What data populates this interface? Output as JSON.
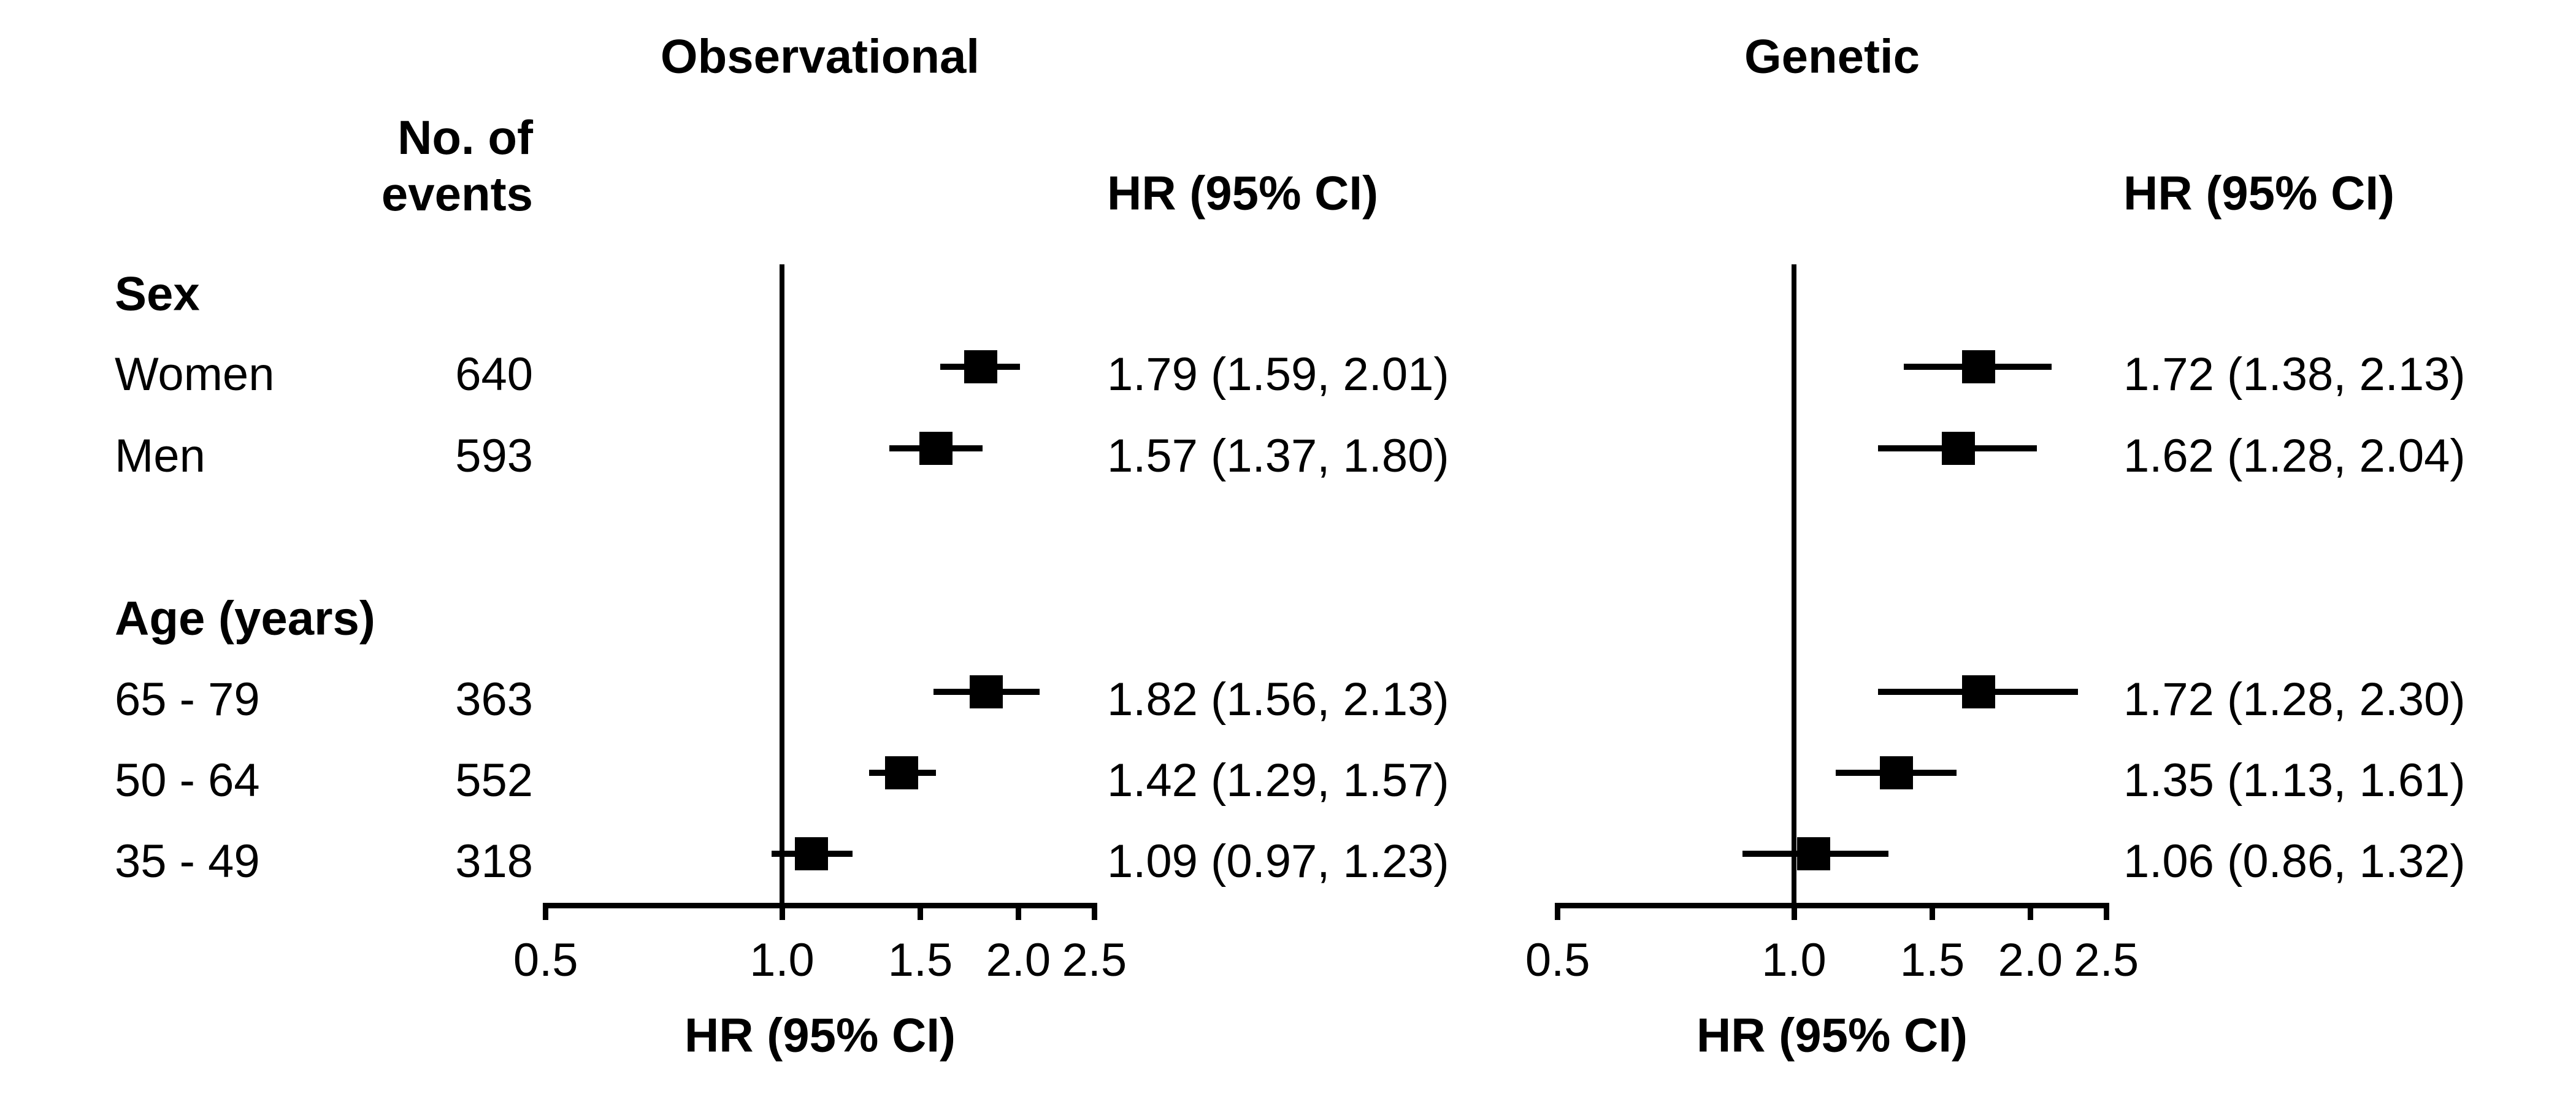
{
  "header": {
    "panel_titles": [
      "Observational",
      "Genetic"
    ],
    "events_line1": "No. of",
    "events_line2": "events",
    "hr_column_header": "HR (95% CI)",
    "axis_label": "HR (95% CI)"
  },
  "chart_data": {
    "type": "forest",
    "xscale": "log",
    "xticks": [
      "0.5",
      "1.0",
      "1.5",
      "2.0",
      "2.5"
    ],
    "xlim": [
      0.5,
      2.5
    ],
    "reference_value": 1.0,
    "xlabel": "HR (95% CI)",
    "grid": "off",
    "panels": [
      "Observational",
      "Genetic"
    ],
    "columns": {
      "left_label": "group",
      "events": "No. of events",
      "right_text": "HR (95% CI)"
    },
    "groups": [
      {
        "label": "Sex",
        "rows": [
          {
            "label": "Women",
            "events": "640",
            "estimates": [
              {
                "hr": 1.79,
                "lo": 1.59,
                "hi": 2.01,
                "text": "1.79 (1.59, 2.01)"
              },
              {
                "hr": 1.72,
                "lo": 1.38,
                "hi": 2.13,
                "text": "1.72 (1.38, 2.13)"
              }
            ]
          },
          {
            "label": "Men",
            "events": "593",
            "estimates": [
              {
                "hr": 1.57,
                "lo": 1.37,
                "hi": 1.8,
                "text": "1.57 (1.37, 1.80)"
              },
              {
                "hr": 1.62,
                "lo": 1.28,
                "hi": 2.04,
                "text": "1.62 (1.28, 2.04)"
              }
            ]
          }
        ]
      },
      {
        "label": "Age (years)",
        "rows": [
          {
            "label": "65 - 79",
            "events": "363",
            "estimates": [
              {
                "hr": 1.82,
                "lo": 1.56,
                "hi": 2.13,
                "text": "1.82 (1.56, 2.13)"
              },
              {
                "hr": 1.72,
                "lo": 1.28,
                "hi": 2.3,
                "text": "1.72 (1.28, 2.30)"
              }
            ]
          },
          {
            "label": "50 - 64",
            "events": "552",
            "estimates": [
              {
                "hr": 1.42,
                "lo": 1.29,
                "hi": 1.57,
                "text": "1.42 (1.29, 1.57)"
              },
              {
                "hr": 1.35,
                "lo": 1.13,
                "hi": 1.61,
                "text": "1.35 (1.13, 1.61)"
              }
            ]
          },
          {
            "label": "35 - 49",
            "events": "318",
            "estimates": [
              {
                "hr": 1.09,
                "lo": 0.97,
                "hi": 1.23,
                "text": "1.09 (0.97, 1.23)"
              },
              {
                "hr": 1.06,
                "lo": 0.86,
                "hi": 1.32,
                "text": "1.06 (0.86, 1.32)"
              }
            ]
          }
        ]
      }
    ],
    "colors": {
      "foreground": "#000000",
      "background": "#ffffff"
    }
  }
}
